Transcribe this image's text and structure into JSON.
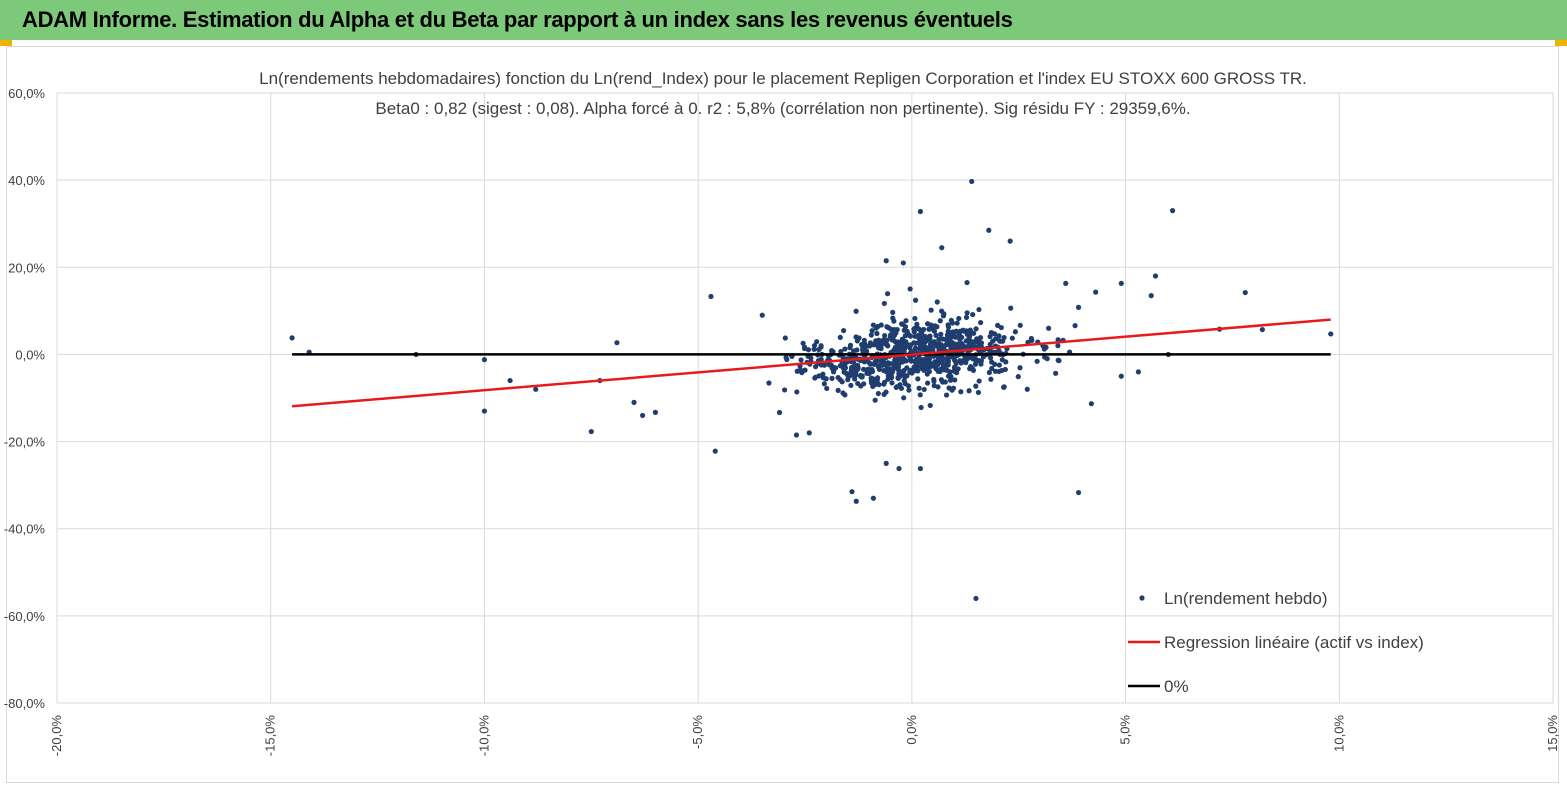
{
  "header": {
    "title": "ADAM Informe. Estimation du Alpha et du Beta par rapport à un index sans les revenus éventuels"
  },
  "colors": {
    "header_bg": "#7dc97a",
    "points": "#1f3d6e",
    "regression": "#e81b1b",
    "zero_line": "#000000",
    "grid": "#d9d9d9"
  },
  "chart_data": {
    "type": "scatter",
    "title": "Ln(rendements hebdomadaires) fonction du Ln(rend_Index) pour le placement Repligen Corporation et l'index EU STOXX 600 GROSS TR.",
    "subtitle": "Beta0 : 0,82 (sigest : 0,08). Alpha forcé à 0. r2 : 5,8% (corrélation non pertinente). Sig résidu FY : 29359,6%.",
    "xlim": [
      -0.2,
      0.15
    ],
    "ylim": [
      -0.8,
      0.6
    ],
    "x_ticks": [
      "-20,0%",
      "-15,0%",
      "-10,0%",
      "-5,0%",
      "0,0%",
      "5,0%",
      "10,0%",
      "15,0%"
    ],
    "y_ticks": [
      "60,0%",
      "40,0%",
      "20,0%",
      "0,0%",
      "-20,0%",
      "-40,0%",
      "-60,0%",
      "-80,0%"
    ],
    "grid": true,
    "legend_position": "bottom-right",
    "beta": 0.82,
    "series": [
      {
        "name": "Ln(rendement hebdo)",
        "kind": "scatter",
        "outliers": [
          [
            -0.145,
            0.038
          ],
          [
            -0.141,
            0.005
          ],
          [
            -0.116,
            0.0
          ],
          [
            -0.1,
            -0.012
          ],
          [
            -0.1,
            -0.13
          ],
          [
            -0.094,
            -0.06
          ],
          [
            -0.088,
            -0.08
          ],
          [
            -0.075,
            -0.177
          ],
          [
            -0.073,
            -0.06
          ],
          [
            -0.069,
            0.027
          ],
          [
            -0.065,
            -0.11
          ],
          [
            -0.063,
            -0.14
          ],
          [
            -0.06,
            -0.133
          ],
          [
            -0.047,
            0.133
          ],
          [
            -0.046,
            -0.222
          ],
          [
            -0.035,
            0.09
          ],
          [
            -0.027,
            -0.185
          ],
          [
            -0.024,
            -0.18
          ],
          [
            -0.014,
            -0.315
          ],
          [
            -0.013,
            -0.337
          ],
          [
            -0.009,
            -0.33
          ],
          [
            -0.006,
            -0.25
          ],
          [
            -0.003,
            -0.262
          ],
          [
            0.002,
            -0.262
          ],
          [
            -0.006,
            0.215
          ],
          [
            -0.002,
            0.21
          ],
          [
            0.002,
            0.328
          ],
          [
            0.007,
            0.245
          ],
          [
            0.014,
            0.397
          ],
          [
            0.015,
            -0.56
          ],
          [
            0.018,
            0.285
          ],
          [
            0.023,
            0.26
          ],
          [
            0.039,
            -0.317
          ],
          [
            0.042,
            -0.113
          ],
          [
            0.049,
            0.163
          ],
          [
            0.049,
            -0.05
          ],
          [
            0.053,
            -0.04
          ],
          [
            0.057,
            0.18
          ],
          [
            0.056,
            0.135
          ],
          [
            0.061,
            0.33
          ],
          [
            0.06,
            0.0
          ],
          [
            0.072,
            0.058
          ],
          [
            0.078,
            0.142
          ],
          [
            0.082,
            0.057
          ],
          [
            0.098,
            0.047
          ],
          [
            0.036,
            0.163
          ],
          [
            0.039,
            0.108
          ],
          [
            0.043,
            0.143
          ],
          [
            0.027,
            -0.08
          ],
          [
            0.032,
            0.06
          ]
        ],
        "core_count": 820,
        "core_x_sigma": 0.013,
        "core_y_sigma": 0.055
      },
      {
        "name": "Regression linéaire (actif vs index)",
        "kind": "line",
        "x": [
          -0.145,
          0.098
        ],
        "y": [
          -0.119,
          0.08
        ]
      },
      {
        "name": "0%",
        "kind": "line",
        "x": [
          -0.145,
          0.098
        ],
        "y": [
          0.0,
          0.0
        ]
      }
    ]
  }
}
